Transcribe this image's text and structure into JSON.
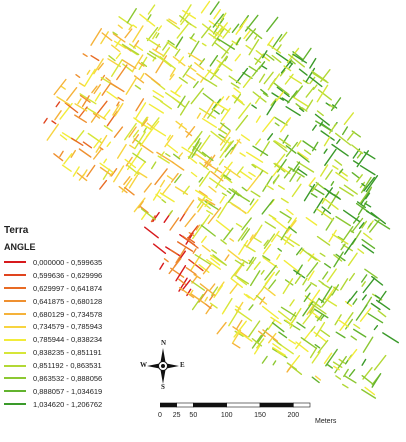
{
  "legend": {
    "title": "Terra",
    "field": "ANGLE",
    "classes": [
      {
        "label": "0,000000 - 0,599635",
        "color": "#d7191c"
      },
      {
        "label": "0,599636 - 0,629996",
        "color": "#e0441e"
      },
      {
        "label": "0,629997 - 0,641874",
        "color": "#e86b24"
      },
      {
        "label": "0,641875 - 0,680128",
        "color": "#ef9030"
      },
      {
        "label": "0,680129 - 0,734578",
        "color": "#f5b23a"
      },
      {
        "label": "0,734579 - 0,785943",
        "color": "#f7d440"
      },
      {
        "label": "0,785944 - 0,838234",
        "color": "#f2ec3a"
      },
      {
        "label": "0,838235 - 0,851191",
        "color": "#d6e638"
      },
      {
        "label": "0,851192 - 0,863531",
        "color": "#b2d835"
      },
      {
        "label": "0,863532 - 0,888056",
        "color": "#8cc832"
      },
      {
        "label": "0,888057 - 1,034619",
        "color": "#62b32e"
      },
      {
        "label": "1,034620 - 1,206762",
        "color": "#3a9a2a"
      }
    ]
  },
  "compass": {
    "n": "N",
    "s": "S",
    "e": "E",
    "w": "W"
  },
  "scale_bar": {
    "ticks": [
      "0",
      "25",
      "50",
      "100",
      "150",
      "200"
    ],
    "tick_values": [
      0,
      25,
      50,
      100,
      150,
      200
    ],
    "max": 225,
    "unit": "Meters"
  }
}
